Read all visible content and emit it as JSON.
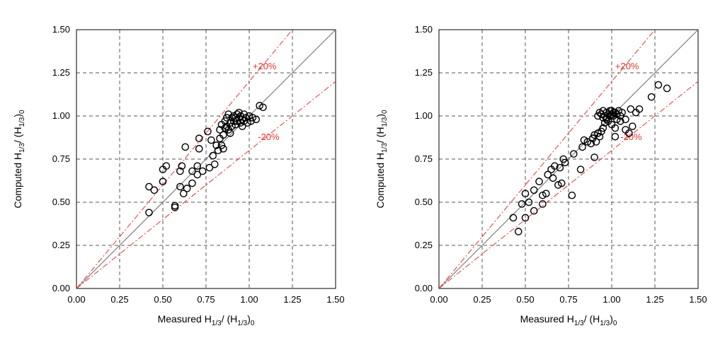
{
  "colors": {
    "band": "#e8352f",
    "identity": "#808080",
    "grid": "#555555",
    "marker": "#000000"
  },
  "chart_data": [
    {
      "type": "scatter",
      "xlabel_main": "Measured H",
      "xlabel_sub": "1/3",
      "xlabel_rest": "/ (H",
      "xlabel_sub2": "1/3",
      "xlabel_close": ")",
      "xlabel_sub3": "0",
      "ylabel_main": "Computed H",
      "ylabel_sub": "1/3",
      "ylabel_rest": "/ (H",
      "ylabel_sub2": "1/3",
      "ylabel_close": ")",
      "ylabel_sub3": "0",
      "xlim": [
        0,
        1.5
      ],
      "ylim": [
        0,
        1.5
      ],
      "xticks": [
        "0.00",
        "0.25",
        "0.50",
        "0.75",
        "1.00",
        "1.25",
        "1.50"
      ],
      "yticks": [
        "0.00",
        "0.25",
        "0.50",
        "0.75",
        "1.00",
        "1.25",
        "1.50"
      ],
      "grid": true,
      "band_plus_label": "+20%",
      "band_minus_label": "-20%",
      "points": [
        [
          0.42,
          0.59
        ],
        [
          0.45,
          0.57
        ],
        [
          0.42,
          0.44
        ],
        [
          0.5,
          0.62
        ],
        [
          0.5,
          0.69
        ],
        [
          0.52,
          0.71
        ],
        [
          0.57,
          0.48
        ],
        [
          0.57,
          0.47
        ],
        [
          0.6,
          0.68
        ],
        [
          0.61,
          0.71
        ],
        [
          0.6,
          0.59
        ],
        [
          0.62,
          0.55
        ],
        [
          0.63,
          0.82
        ],
        [
          0.64,
          0.58
        ],
        [
          0.67,
          0.61
        ],
        [
          0.67,
          0.68
        ],
        [
          0.7,
          0.71
        ],
        [
          0.7,
          0.66
        ],
        [
          0.71,
          0.81
        ],
        [
          0.71,
          0.87
        ],
        [
          0.73,
          0.68
        ],
        [
          0.76,
          0.91
        ],
        [
          0.77,
          0.7
        ],
        [
          0.78,
          0.86
        ],
        [
          0.79,
          0.77
        ],
        [
          0.8,
          0.72
        ],
        [
          0.81,
          0.83
        ],
        [
          0.82,
          0.8
        ],
        [
          0.83,
          0.92
        ],
        [
          0.83,
          0.87
        ],
        [
          0.84,
          0.83
        ],
        [
          0.84,
          0.95
        ],
        [
          0.85,
          0.89
        ],
        [
          0.85,
          0.81
        ],
        [
          0.86,
          0.97
        ],
        [
          0.86,
          0.93
        ],
        [
          0.87,
          0.99
        ],
        [
          0.87,
          0.94
        ],
        [
          0.88,
          0.92
        ],
        [
          0.88,
          1.01
        ],
        [
          0.89,
          0.96
        ],
        [
          0.89,
          0.9
        ],
        [
          0.9,
          0.99
        ],
        [
          0.9,
          0.94
        ],
        [
          0.91,
          1.0
        ],
        [
          0.91,
          0.97
        ],
        [
          0.92,
          0.95
        ],
        [
          0.92,
          0.99
        ],
        [
          0.93,
          1.01
        ],
        [
          0.93,
          0.97
        ],
        [
          0.94,
          0.99
        ],
        [
          0.94,
          1.02
        ],
        [
          0.95,
          0.96
        ],
        [
          0.95,
          1.0
        ],
        [
          0.96,
          0.98
        ],
        [
          0.96,
          0.94
        ],
        [
          0.97,
          1.01
        ],
        [
          0.97,
          0.97
        ],
        [
          0.98,
          0.99
        ],
        [
          0.99,
          0.96
        ],
        [
          1.0,
          1.0
        ],
        [
          1.01,
          0.97
        ],
        [
          1.02,
          0.99
        ],
        [
          1.04,
          0.98
        ],
        [
          1.06,
          1.06
        ],
        [
          1.08,
          1.05
        ]
      ]
    },
    {
      "type": "scatter",
      "xlabel_main": "Measured H",
      "xlabel_sub": "1/3",
      "xlabel_rest": "/ (H",
      "xlabel_sub2": "1/3",
      "xlabel_close": ")",
      "xlabel_sub3": "0",
      "ylabel_main": "Computed H",
      "ylabel_sub": "1/3",
      "ylabel_rest": "/ (H",
      "ylabel_sub2": "1/3",
      "ylabel_close": ")",
      "ylabel_sub3": "0",
      "xlim": [
        0,
        1.5
      ],
      "ylim": [
        0,
        1.5
      ],
      "xticks": [
        "0.00",
        "0.25",
        "0.50",
        "0.75",
        "1.00",
        "1.25",
        "1.50"
      ],
      "yticks": [
        "0.00",
        "0.25",
        "0.50",
        "0.75",
        "1.00",
        "1.25",
        "1.50"
      ],
      "grid": true,
      "band_plus_label": "+20%",
      "band_minus_label": "-20%",
      "points": [
        [
          0.43,
          0.41
        ],
        [
          0.46,
          0.33
        ],
        [
          0.48,
          0.49
        ],
        [
          0.5,
          0.55
        ],
        [
          0.5,
          0.41
        ],
        [
          0.52,
          0.5
        ],
        [
          0.55,
          0.45
        ],
        [
          0.55,
          0.57
        ],
        [
          0.58,
          0.62
        ],
        [
          0.6,
          0.49
        ],
        [
          0.6,
          0.54
        ],
        [
          0.62,
          0.55
        ],
        [
          0.63,
          0.66
        ],
        [
          0.65,
          0.69
        ],
        [
          0.66,
          0.64
        ],
        [
          0.67,
          0.71
        ],
        [
          0.69,
          0.6
        ],
        [
          0.7,
          0.7
        ],
        [
          0.71,
          0.61
        ],
        [
          0.72,
          0.75
        ],
        [
          0.73,
          0.73
        ],
        [
          0.77,
          0.54
        ],
        [
          0.78,
          0.78
        ],
        [
          0.82,
          0.69
        ],
        [
          0.83,
          0.82
        ],
        [
          0.84,
          0.86
        ],
        [
          0.86,
          0.85
        ],
        [
          0.88,
          0.84
        ],
        [
          0.89,
          0.87
        ],
        [
          0.9,
          0.76
        ],
        [
          0.9,
          0.89
        ],
        [
          0.91,
          0.85
        ],
        [
          0.92,
          0.9
        ],
        [
          0.93,
          0.88
        ],
        [
          0.94,
          0.91
        ],
        [
          0.95,
          0.93
        ],
        [
          0.96,
          0.96
        ],
        [
          0.97,
          0.99
        ],
        [
          0.98,
          0.97
        ],
        [
          1.0,
          0.95
        ],
        [
          1.02,
          0.93
        ],
        [
          1.02,
          0.88
        ],
        [
          1.03,
          0.98
        ],
        [
          1.05,
          0.97
        ],
        [
          1.08,
          0.92
        ],
        [
          1.08,
          0.98
        ],
        [
          1.1,
          0.9
        ],
        [
          1.11,
          1.04
        ],
        [
          1.12,
          0.94
        ],
        [
          1.14,
          1.02
        ],
        [
          1.16,
          1.04
        ],
        [
          1.23,
          1.11
        ],
        [
          1.27,
          1.18
        ],
        [
          1.32,
          1.16
        ],
        [
          0.92,
          1.0
        ],
        [
          0.93,
          1.02
        ],
        [
          0.94,
          1.01
        ],
        [
          0.95,
          1.03
        ],
        [
          0.96,
          1.0
        ],
        [
          0.97,
          1.02
        ],
        [
          0.98,
          1.01
        ],
        [
          0.99,
          1.03
        ],
        [
          1.0,
          1.01
        ],
        [
          1.0,
          1.03
        ],
        [
          1.01,
          1.0
        ],
        [
          1.02,
          1.02
        ],
        [
          1.03,
          1.01
        ],
        [
          1.04,
          1.03
        ],
        [
          1.05,
          1.0
        ],
        [
          1.06,
          1.02
        ],
        [
          0.95,
          0.99
        ],
        [
          0.99,
          1.0
        ],
        [
          1.01,
          1.02
        ],
        [
          0.97,
          0.98
        ]
      ]
    }
  ]
}
